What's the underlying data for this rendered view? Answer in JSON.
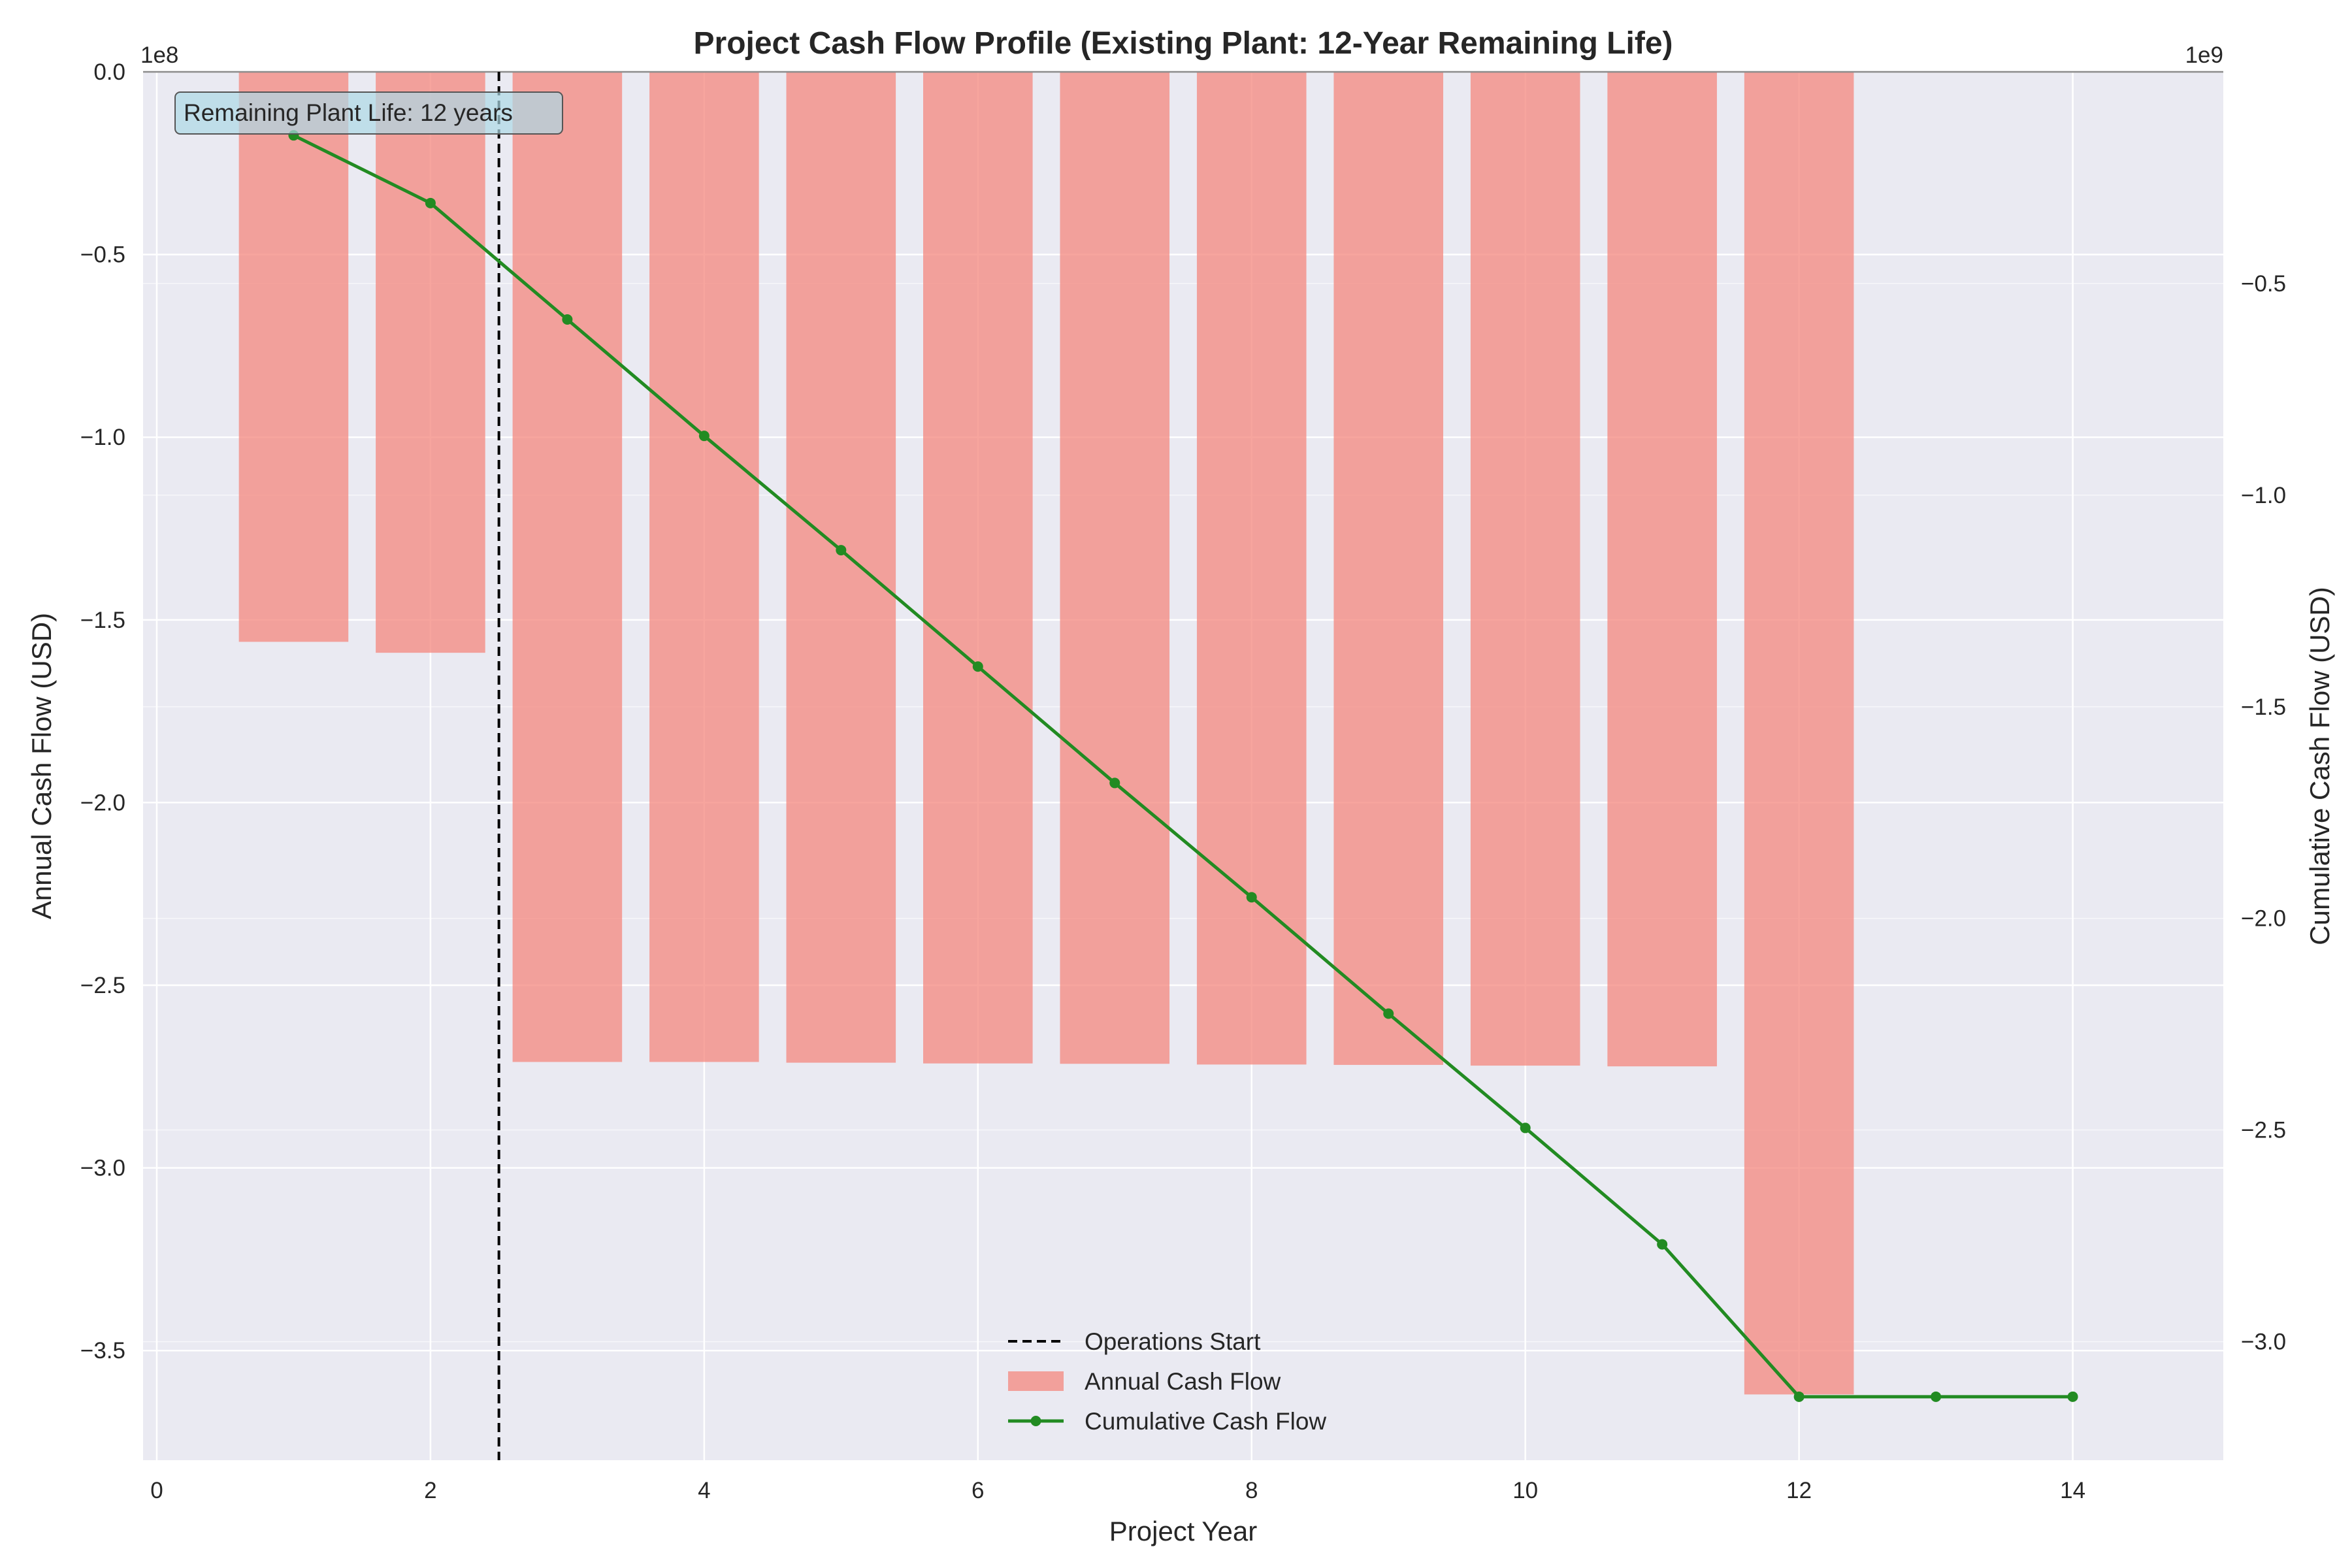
{
  "chart_data": {
    "type": "bar",
    "title": "Project Cash Flow Profile (Existing Plant: 12-Year Remaining Life)",
    "xlabel": "Project Year",
    "ylabel": "Annual Cash Flow (USD)",
    "y2label": "Cumulative Cash Flow (USD)",
    "xlim": [
      -0.1,
      15.1
    ],
    "ylim": [
      -380000000,
      0
    ],
    "y2lim": [
      -3280000000,
      0
    ],
    "x_ticks": [
      0,
      2,
      4,
      6,
      8,
      10,
      12,
      14
    ],
    "y_ticks": [
      0,
      -0.5,
      -1.0,
      -1.5,
      -2.0,
      -2.5,
      -3.0,
      -3.5
    ],
    "y_tick_scale": 100000000,
    "y_offset_label": "1e8",
    "y2_ticks": [
      -0.5,
      -1.0,
      -1.5,
      -2.0,
      -2.5,
      -3.0
    ],
    "y2_tick_scale": 1000000000,
    "y2_offset_label": "1e9",
    "grid": true,
    "legend_position": "bottom-center",
    "series": [
      {
        "name": "Annual Cash Flow",
        "kind": "bar",
        "axis": "left",
        "color": "#f4877e",
        "x": [
          1,
          2,
          3,
          4,
          5,
          6,
          7,
          8,
          9,
          10,
          11,
          12
        ],
        "values": [
          -156000000,
          -159000000,
          -271000000,
          -271000000,
          -271200000,
          -271400000,
          -271500000,
          -271700000,
          -271800000,
          -272000000,
          -272200000,
          -362000000
        ]
      },
      {
        "name": "Cumulative Cash Flow",
        "kind": "line",
        "axis": "right",
        "color": "#228b22",
        "x": [
          1,
          2,
          3,
          4,
          5,
          6,
          7,
          8,
          9,
          10,
          11,
          12,
          13,
          14
        ],
        "values": [
          -150000000,
          -310000000,
          -585000000,
          -860000000,
          -1130000000,
          -1405000000,
          -1680000000,
          -1950000000,
          -2225000000,
          -2495000000,
          -2770000000,
          -3130000000,
          -3130000000,
          -3130000000
        ]
      }
    ],
    "reference_lines": [
      {
        "name": "Operations Start",
        "x": 2.5,
        "style": "dashed",
        "color": "#000000"
      }
    ],
    "annotations": [
      {
        "text": "Remaining Plant Life: 12 years"
      }
    ]
  }
}
